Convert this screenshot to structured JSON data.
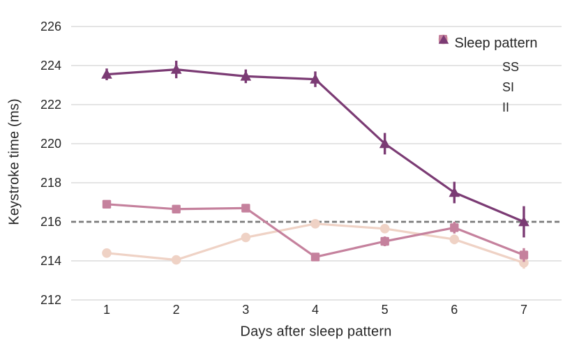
{
  "figure": {
    "background": "#ffffff",
    "text_color": "#262626",
    "grid_color": "#dcdcdc"
  },
  "chart_data": {
    "type": "line",
    "title": "",
    "xlabel": "Days after sleep pattern",
    "ylabel": "Keystroke time (ms)",
    "x": [
      1,
      2,
      3,
      4,
      5,
      6,
      7
    ],
    "xticks": [
      1,
      2,
      3,
      4,
      5,
      6,
      7
    ],
    "yticks": [
      212,
      214,
      216,
      218,
      220,
      222,
      224,
      226
    ],
    "ylim": [
      211.5,
      226.5
    ],
    "grid": "horizontal solid light-gray gridlines at y ticks, no axis spines",
    "reference_line": {
      "y": 216,
      "style": "dashed",
      "color": "#7b7b7b"
    },
    "legend": {
      "title": "Sleep pattern",
      "position": "upper-right inside plot"
    },
    "series": [
      {
        "name": "SS",
        "marker": "circle",
        "color": "#efd2c5",
        "values": [
          214.4,
          214.05,
          215.2,
          215.9,
          215.65,
          215.1,
          213.9
        ],
        "errors": [
          0.15,
          0.12,
          0.15,
          0.2,
          0.2,
          0.25,
          0.3
        ]
      },
      {
        "name": "SI",
        "marker": "square",
        "color": "#c5819d",
        "values": [
          216.9,
          216.65,
          216.7,
          214.2,
          215.0,
          215.7,
          214.3
        ],
        "errors": [
          0.15,
          0.15,
          0.2,
          0.15,
          0.25,
          0.3,
          0.35
        ]
      },
      {
        "name": "II",
        "marker": "triangle",
        "color": "#7b3b74",
        "values": [
          223.55,
          223.8,
          223.45,
          223.3,
          220.0,
          217.5,
          216.0
        ],
        "errors": [
          0.3,
          0.45,
          0.35,
          0.4,
          0.55,
          0.55,
          0.8
        ]
      }
    ]
  }
}
